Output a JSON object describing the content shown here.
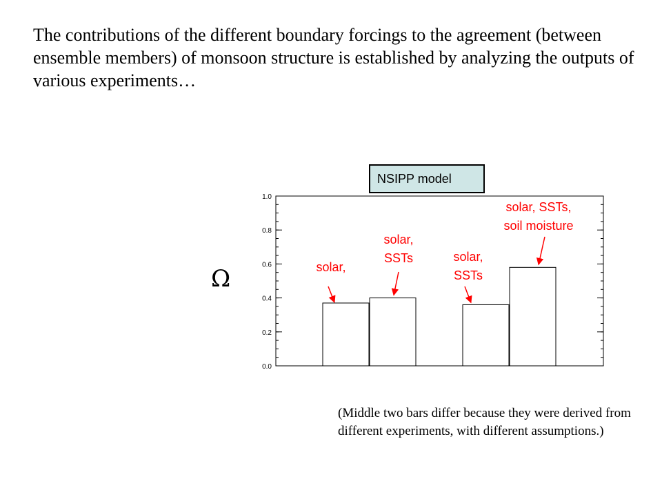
{
  "slide": {
    "title": "The contributions of the different boundary forcings to the agreement (between ensemble members) of monsoon structure is established by analyzing the outputs of various experiments…",
    "note": "(Middle two bars differ because they were derived from different experiments, with different assumptions.)",
    "model_label": "NSIPP model",
    "symbol": "Ω",
    "colors": {
      "annotation": "#ff0000",
      "box_fill": "#cfe6e6",
      "bar_fill": "#ffffff",
      "axis": "#000000"
    }
  },
  "chart_data": {
    "type": "bar",
    "categories": [
      "solar,",
      "solar, SSTs",
      "solar, SSTs",
      "solar, SSTs, soil moisture"
    ],
    "category_lines": [
      [
        "solar,"
      ],
      [
        "solar,",
        "SSTs"
      ],
      [
        "solar,",
        "SSTs"
      ],
      [
        "solar, SSTs,",
        "soil moisture"
      ]
    ],
    "values": [
      0.37,
      0.4,
      0.36,
      0.58
    ],
    "ylim": [
      0,
      1.0
    ],
    "yticks": [
      "0.0",
      "0.2",
      "0.4",
      "0.6",
      "0.8",
      "1.0"
    ],
    "ylabel": "Ω",
    "title": "NSIPP model"
  }
}
